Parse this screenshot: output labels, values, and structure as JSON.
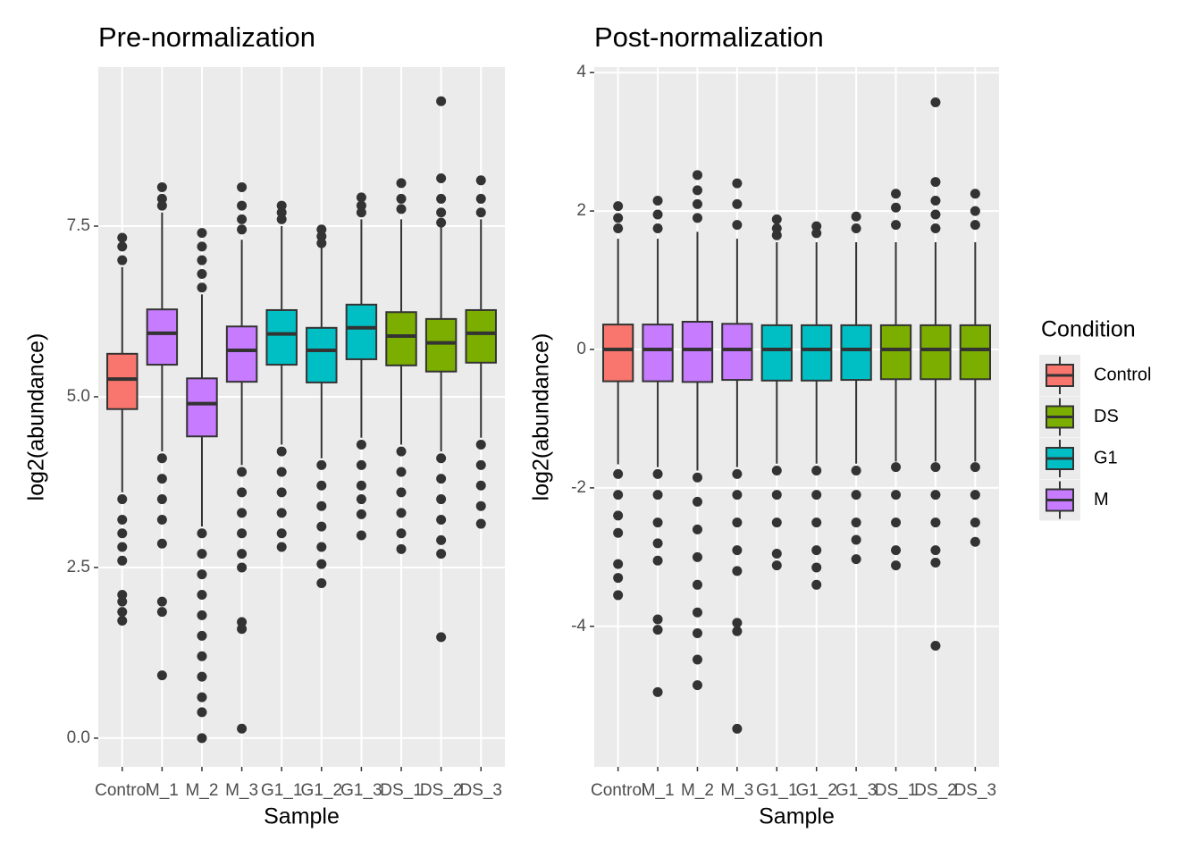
{
  "chart_data": [
    {
      "type": "boxplot",
      "title": "Pre-normalization",
      "x_label": "Sample",
      "y_label": "log2(abundance)",
      "categories": [
        "Control",
        "M_1",
        "M_2",
        "M_3",
        "G1_1",
        "G1_2",
        "G1_3",
        "DS_1",
        "DS_2",
        "DS_3"
      ],
      "groups": [
        "Control",
        "M",
        "M",
        "M",
        "G1",
        "G1",
        "G1",
        "DS",
        "DS",
        "DS"
      ],
      "ylim": [
        -0.42,
        9.83
      ],
      "yticks": [
        {
          "value": 0,
          "label": "0.0"
        },
        2.5,
        {
          "value": 5,
          "label": "5.0"
        },
        7.5
      ],
      "grid": true,
      "boxes": [
        {
          "low": 3.6,
          "q1": 4.82,
          "median": 5.26,
          "q3": 5.63,
          "high": 6.9,
          "outliers": [
            7.33,
            7.2,
            7.0,
            3.5,
            3.2,
            3.0,
            2.8,
            2.6,
            2.1,
            2.0,
            1.85,
            1.72
          ]
        },
        {
          "low": 4.2,
          "q1": 5.47,
          "median": 5.93,
          "q3": 6.28,
          "high": 7.7,
          "outliers": [
            8.07,
            7.9,
            7.8,
            4.1,
            3.8,
            3.5,
            3.2,
            2.85,
            2.0,
            1.85,
            0.92
          ]
        },
        {
          "low": 3.1,
          "q1": 4.42,
          "median": 4.9,
          "q3": 5.27,
          "high": 6.5,
          "outliers": [
            7.4,
            7.2,
            7.0,
            6.8,
            6.6,
            3.0,
            2.7,
            2.4,
            2.1,
            1.8,
            1.5,
            1.2,
            0.9,
            0.6,
            0.38,
            0.0
          ]
        },
        {
          "low": 4.0,
          "q1": 5.22,
          "median": 5.68,
          "q3": 6.03,
          "high": 7.3,
          "outliers": [
            8.07,
            7.8,
            7.6,
            7.45,
            3.9,
            3.6,
            3.3,
            3.0,
            2.7,
            2.5,
            1.7,
            1.6,
            0.14
          ]
        },
        {
          "low": 4.3,
          "q1": 5.47,
          "median": 5.92,
          "q3": 6.27,
          "high": 7.5,
          "outliers": [
            7.8,
            7.7,
            7.6,
            4.2,
            3.9,
            3.6,
            3.3,
            3.0,
            2.8
          ]
        },
        {
          "low": 4.1,
          "q1": 5.21,
          "median": 5.68,
          "q3": 6.01,
          "high": 7.2,
          "outliers": [
            7.45,
            7.35,
            7.25,
            4.0,
            3.7,
            3.4,
            3.1,
            2.8,
            2.55,
            2.27
          ]
        },
        {
          "low": 4.4,
          "q1": 5.55,
          "median": 6.01,
          "q3": 6.35,
          "high": 7.6,
          "outliers": [
            7.92,
            7.8,
            7.7,
            4.3,
            4.0,
            3.7,
            3.5,
            3.28,
            2.97
          ]
        },
        {
          "low": 4.3,
          "q1": 5.46,
          "median": 5.89,
          "q3": 6.24,
          "high": 7.6,
          "outliers": [
            8.13,
            7.9,
            7.75,
            4.2,
            3.9,
            3.6,
            3.3,
            3.0,
            2.77
          ]
        },
        {
          "low": 4.2,
          "q1": 5.37,
          "median": 5.79,
          "q3": 6.14,
          "high": 7.5,
          "outliers": [
            9.33,
            8.2,
            7.9,
            7.7,
            7.55,
            4.1,
            3.8,
            3.5,
            3.2,
            2.9,
            2.7,
            1.48
          ]
        },
        {
          "low": 4.4,
          "q1": 5.5,
          "median": 5.93,
          "q3": 6.27,
          "high": 7.6,
          "outliers": [
            8.17,
            7.9,
            7.7,
            4.3,
            4.0,
            3.7,
            3.4,
            3.14
          ]
        }
      ]
    },
    {
      "type": "boxplot",
      "title": "Post-normalization",
      "x_label": "Sample",
      "y_label": "log2(abundance)",
      "categories": [
        "Control",
        "M_1",
        "M_2",
        "M_3",
        "G1_1",
        "G1_2",
        "G1_3",
        "DS_1",
        "DS_2",
        "DS_3"
      ],
      "groups": [
        "Control",
        "M",
        "M",
        "M",
        "G1",
        "G1",
        "G1",
        "DS",
        "DS",
        "DS"
      ],
      "ylim": [
        -6.03,
        4.08
      ],
      "yticks": [
        -4,
        -2,
        0,
        2,
        4
      ],
      "grid": true,
      "legend": {
        "title": "Condition",
        "position": "right",
        "entries": [
          {
            "name": "Control",
            "color": "#f8766d"
          },
          {
            "name": "DS",
            "color": "#7cae00"
          },
          {
            "name": "G1",
            "color": "#00bfc4"
          },
          {
            "name": "M",
            "color": "#c77cff"
          }
        ]
      },
      "boxes": [
        {
          "low": -1.66,
          "q1": -0.46,
          "median": 0,
          "q3": 0.36,
          "high": 1.6,
          "outliers": [
            2.07,
            1.9,
            1.75,
            -1.8,
            -2.1,
            -2.4,
            -2.65,
            -3.1,
            -3.3,
            -3.55
          ]
        },
        {
          "low": -1.7,
          "q1": -0.46,
          "median": 0,
          "q3": 0.36,
          "high": 1.6,
          "outliers": [
            2.15,
            1.95,
            1.75,
            -1.8,
            -2.1,
            -2.5,
            -2.8,
            -3.05,
            -3.9,
            -4.05,
            -4.95
          ]
        },
        {
          "low": -1.75,
          "q1": -0.47,
          "median": 0,
          "q3": 0.4,
          "high": 1.7,
          "outliers": [
            2.52,
            2.3,
            2.1,
            1.9,
            -1.85,
            -2.2,
            -2.6,
            -3.0,
            -3.4,
            -3.8,
            -4.1,
            -4.48,
            -4.85
          ]
        },
        {
          "low": -1.7,
          "q1": -0.44,
          "median": 0,
          "q3": 0.37,
          "high": 1.6,
          "outliers": [
            2.4,
            2.1,
            1.8,
            -1.8,
            -2.1,
            -2.5,
            -2.9,
            -3.2,
            -3.95,
            -4.07,
            -5.48
          ]
        },
        {
          "low": -1.65,
          "q1": -0.45,
          "median": 0,
          "q3": 0.35,
          "high": 1.55,
          "outliers": [
            1.88,
            1.75,
            1.65,
            -1.75,
            -2.1,
            -2.5,
            -2.95,
            -3.12
          ]
        },
        {
          "low": -1.65,
          "q1": -0.45,
          "median": 0,
          "q3": 0.35,
          "high": 1.55,
          "outliers": [
            1.78,
            1.68,
            -1.75,
            -2.1,
            -2.5,
            -2.9,
            -3.15,
            -3.4
          ]
        },
        {
          "low": -1.65,
          "q1": -0.44,
          "median": 0,
          "q3": 0.35,
          "high": 1.55,
          "outliers": [
            1.92,
            1.75,
            -1.75,
            -2.1,
            -2.5,
            -2.75,
            -3.03
          ]
        },
        {
          "low": -1.62,
          "q1": -0.43,
          "median": 0,
          "q3": 0.35,
          "high": 1.55,
          "outliers": [
            2.25,
            2.05,
            1.8,
            -1.7,
            -2.1,
            -2.5,
            -2.9,
            -3.12
          ]
        },
        {
          "low": -1.62,
          "q1": -0.43,
          "median": 0,
          "q3": 0.35,
          "high": 1.55,
          "outliers": [
            3.57,
            2.42,
            2.15,
            1.95,
            1.75,
            -1.7,
            -2.1,
            -2.5,
            -2.9,
            -3.08,
            -4.28
          ]
        },
        {
          "low": -1.62,
          "q1": -0.43,
          "median": 0,
          "q3": 0.35,
          "high": 1.55,
          "outliers": [
            2.25,
            2.0,
            1.8,
            -1.7,
            -2.1,
            -2.5,
            -2.78
          ]
        }
      ]
    }
  ]
}
